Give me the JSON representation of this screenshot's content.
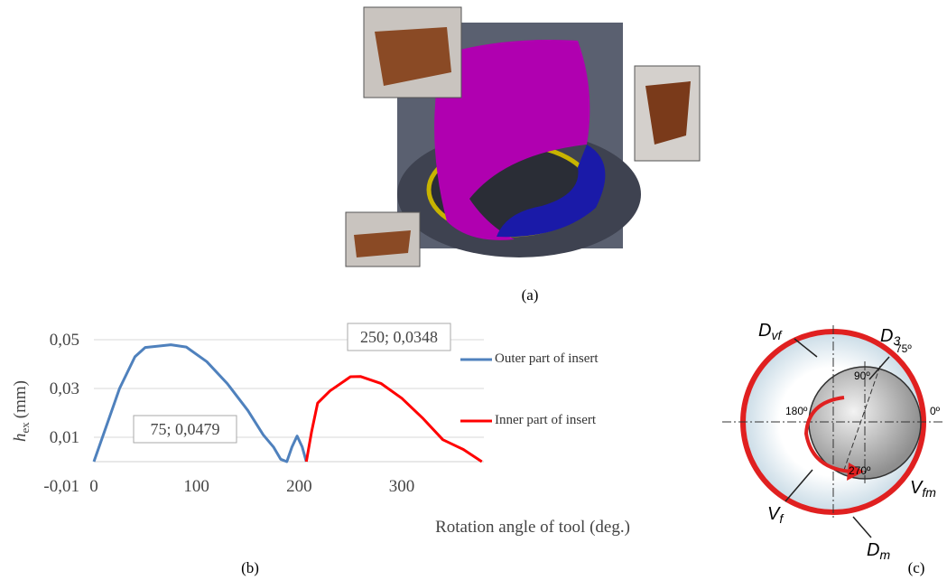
{
  "panel_labels": [
    "(a)",
    "(b)",
    "(c)"
  ],
  "chart_data": {
    "type": "line",
    "ylabel": {
      "symbol": "h",
      "subscript": "ex",
      "unit": "(mm)"
    },
    "xlabel": "Rotation angle of tool (deg.)",
    "xlim": [
      0,
      380
    ],
    "xticks": [
      0,
      100,
      200,
      300
    ],
    "ylim": [
      -0.01,
      0.05
    ],
    "yticks": [
      {
        "value": -0.01,
        "label": "-0,01"
      },
      {
        "value": 0.01,
        "label": "0,01"
      },
      {
        "value": 0.03,
        "label": "0,03"
      },
      {
        "value": 0.05,
        "label": "0,05"
      }
    ],
    "grid": true,
    "series": [
      {
        "name": "Outer part of insert",
        "color": "#4f81bd",
        "x": [
          0,
          10,
          25,
          40,
          50,
          75,
          90,
          110,
          130,
          150,
          165,
          175,
          182,
          188,
          193,
          198,
          203,
          207
        ],
        "values": [
          0,
          0.012,
          0.03,
          0.043,
          0.0468,
          0.0479,
          0.047,
          0.041,
          0.032,
          0.021,
          0.011,
          0.006,
          0.001,
          0,
          0.006,
          0.0105,
          0.006,
          0
        ]
      },
      {
        "name": "Inner part of insert",
        "color": "#ff0000",
        "x": [
          207,
          212,
          218,
          230,
          250,
          260,
          280,
          300,
          320,
          340,
          360,
          378
        ],
        "values": [
          0,
          0.012,
          0.024,
          0.029,
          0.0348,
          0.0349,
          0.032,
          0.026,
          0.018,
          0.009,
          0.005,
          0
        ]
      }
    ],
    "annotations": [
      "75; 0,0479",
      "250; 0,0348"
    ]
  },
  "diagram_c": {
    "d_vf": {
      "base": "D",
      "sub": "vf"
    },
    "d_3": {
      "base": "D",
      "sub": "3"
    },
    "d_m": {
      "base": "D",
      "sub": "m"
    },
    "v_f": {
      "base": "V",
      "sub": "f"
    },
    "v_fm": {
      "base": "V",
      "sub": "fm"
    },
    "angles": [
      "75º",
      "90º",
      "180º",
      "0º",
      "270º"
    ]
  }
}
